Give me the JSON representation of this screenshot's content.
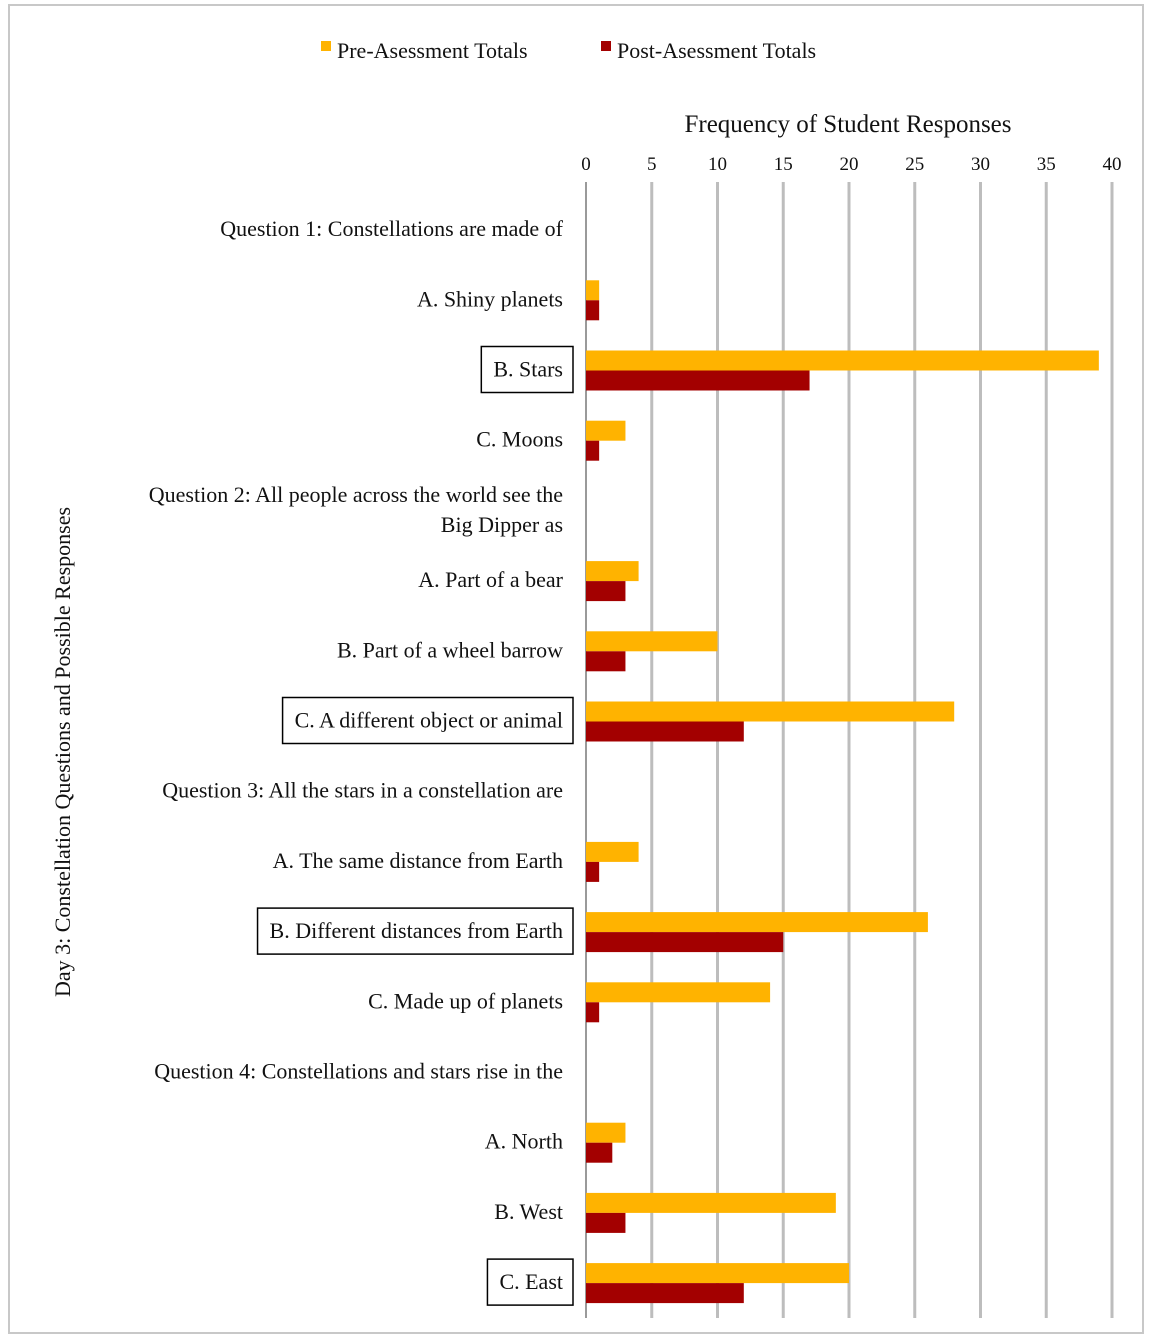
{
  "chart_data": {
    "type": "bar",
    "orientation": "horizontal",
    "xlabel": "Frequency of Student Responses",
    "ylabel": "Day 3: Constellation Questions and Possible Responses",
    "xlim": [
      0,
      40
    ],
    "xticks": [
      0,
      5,
      10,
      15,
      20,
      25,
      30,
      35,
      40
    ],
    "grid": "vertical",
    "legend": "top-center",
    "colors": {
      "pre": "#ffb300",
      "post": "#a30000",
      "grid": "#bdbdbd",
      "box": "#000000"
    },
    "series": [
      {
        "name": "Pre-Asessment Totals",
        "color": "#ffb300",
        "values": [
          null,
          1,
          39,
          3,
          null,
          4,
          10,
          28,
          null,
          4,
          26,
          14,
          null,
          3,
          19,
          20
        ]
      },
      {
        "name": "Post-Asessment Totals",
        "color": "#a30000",
        "values": [
          null,
          1,
          17,
          1,
          null,
          3,
          3,
          12,
          null,
          1,
          15,
          1,
          null,
          2,
          3,
          12
        ]
      }
    ],
    "categories": [
      {
        "lines": [
          "Question 1: Constellations are made of"
        ],
        "boxed": false
      },
      {
        "lines": [
          "A. Shiny planets"
        ],
        "boxed": false
      },
      {
        "lines": [
          "B. Stars"
        ],
        "boxed": true
      },
      {
        "lines": [
          "C. Moons"
        ],
        "boxed": false
      },
      {
        "lines": [
          "Question 2: All people across the world see the",
          "Big Dipper as"
        ],
        "boxed": false
      },
      {
        "lines": [
          "A. Part of a bear"
        ],
        "boxed": false
      },
      {
        "lines": [
          "B. Part of a wheel barrow"
        ],
        "boxed": false
      },
      {
        "lines": [
          "C. A different object or animal"
        ],
        "boxed": true
      },
      {
        "lines": [
          "Question 3: All the stars in a constellation are"
        ],
        "boxed": false
      },
      {
        "lines": [
          "A. The same distance from Earth"
        ],
        "boxed": false
      },
      {
        "lines": [
          "B. Different distances from Earth"
        ],
        "boxed": true
      },
      {
        "lines": [
          "C. Made up of planets"
        ],
        "boxed": false
      },
      {
        "lines": [
          "Question 4: Constellations and stars rise in the"
        ],
        "boxed": false
      },
      {
        "lines": [
          "A. North"
        ],
        "boxed": false
      },
      {
        "lines": [
          "B. West"
        ],
        "boxed": false
      },
      {
        "lines": [
          "C. East"
        ],
        "boxed": true
      }
    ]
  }
}
